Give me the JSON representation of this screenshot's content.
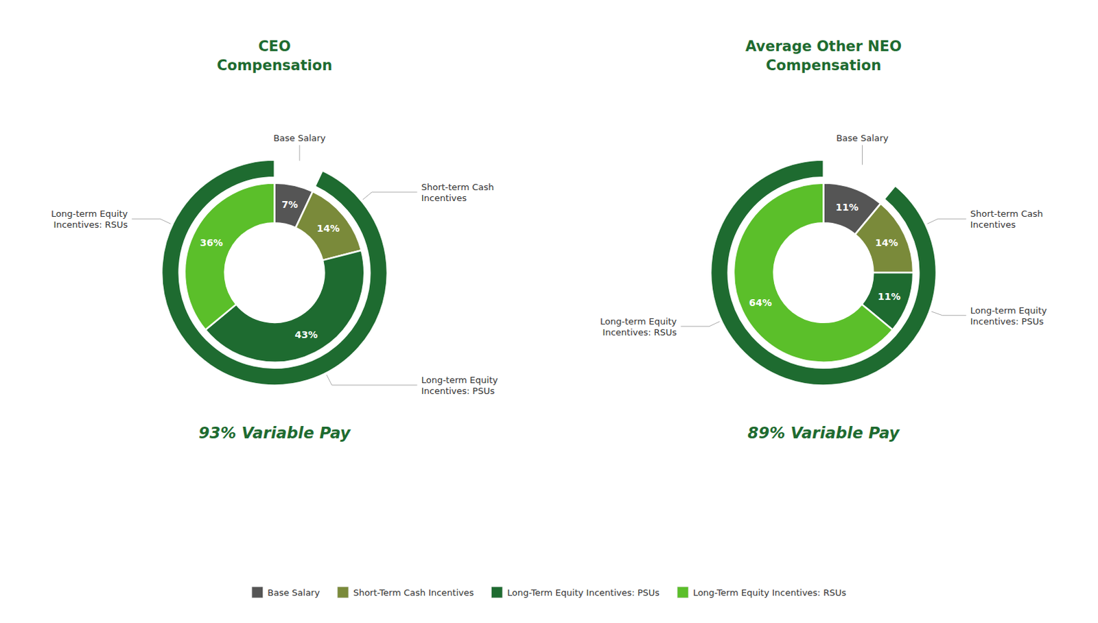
{
  "chart_data": [
    {
      "type": "donut",
      "title": "CEO\nCompensation",
      "categories": [
        "Base Salary",
        "Short-term Cash\nIncentives",
        "Long-term Equity\nIncentives: PSUs",
        "Long-term Equity\nIncentives: RSUs"
      ],
      "values": [
        7,
        14,
        43,
        36
      ],
      "value_labels": [
        "7%",
        "14%",
        "43%",
        "36%"
      ],
      "data_labels": true,
      "colors": [
        "#555555",
        "#7a8a3a",
        "#1e6b30",
        "#5bbf2a"
      ],
      "color": "#1e6b30",
      "annotations": [
        "93% Variable Pay"
      ],
      "legend": "bottom",
      "legend_labels": [
        "Base Salary",
        "Short-Term Cash Incentives",
        "Long-Term Equity Incentives: PSUs",
        "Long-Term Equity Incentives: RSUs"
      ]
    },
    {
      "type": "donut",
      "title": "Average Other NEO\nCompensation",
      "categories": [
        "Base Salary",
        "Short-term Cash\nIncentives",
        "Long-term Equity\nIncentives: PSUs",
        "Long-term Equity\nIncentives: RSUs"
      ],
      "values": [
        11,
        14,
        11,
        64
      ],
      "value_labels": [
        "11%",
        "14%",
        "11%",
        "64%"
      ],
      "data_labels": true,
      "colors": [
        "#555555",
        "#7a8a3a",
        "#1e6b30",
        "#5bbf2a"
      ],
      "color": "#1e6b30",
      "annotations": [
        "89% Variable Pay"
      ]
    }
  ]
}
